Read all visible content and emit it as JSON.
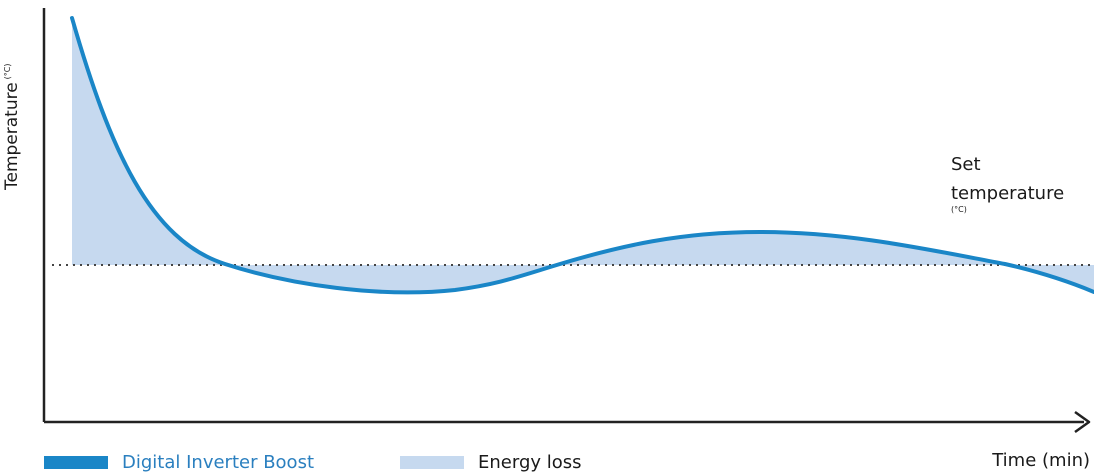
{
  "chart_data": {
    "type": "line",
    "title": "",
    "xlabel": "Time (min)",
    "ylabel": "Temperature",
    "ylabel_unit": "(°C)",
    "reference_line": {
      "label": "Set temperature",
      "unit": "(°C)",
      "style": "dotted"
    },
    "series": [
      {
        "name": "Digital Inverter Boost",
        "color": "#1a86c7"
      }
    ],
    "shaded_area": {
      "name": "Energy loss",
      "color": "#c6d9ef"
    },
    "legend_position": "bottom-left",
    "axes_ticks": false,
    "grid": false,
    "colors": {
      "line": "#1a86c7",
      "fill": "#c6d9ef",
      "axis": "#222222",
      "text": "#1a1a1a",
      "legend_text": "#2a7fbf"
    }
  }
}
